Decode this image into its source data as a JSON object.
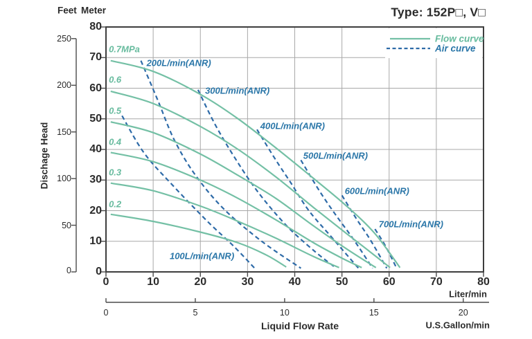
{
  "header": {
    "feet_label": "Feet",
    "meter_label": "Meter",
    "title": "Type: 152P□, V□"
  },
  "legend": {
    "flow_label": "Flow curve",
    "air_label": "Air curve"
  },
  "y_axis": {
    "label": "Dischage Head",
    "meter_ticks": [
      0,
      10,
      20,
      30,
      40,
      50,
      60,
      70,
      80
    ],
    "feet_ticks": [
      0,
      50,
      100,
      150,
      200,
      250
    ]
  },
  "x_axis": {
    "label": "Liquid Flow Rate",
    "liter_ticks": [
      0,
      10,
      20,
      30,
      40,
      50,
      60,
      70,
      80
    ],
    "liter_unit": "Liter/min",
    "gallon_ticks": [
      0,
      5,
      10,
      15,
      20
    ],
    "gallon_unit": "U.S.Gallon/min"
  },
  "colors": {
    "flow_curve": "#74c0a5",
    "flow_text": "#67bb9e",
    "air_curve": "#2e6ba8",
    "air_text": "#2a76a8",
    "grid": "#a8a8a8",
    "frame": "#3d3d3d",
    "axis": "#4a4a4a",
    "text": "#2b2b2b"
  },
  "chart_data": {
    "type": "line",
    "title": "Type: 152P□, V□",
    "xlabel": "Liquid Flow Rate",
    "ylabel": "Dischage Head",
    "x_unit_primary": "Liter/min",
    "x_unit_secondary": "U.S.Gallon/min",
    "y_unit_primary": "Meter",
    "y_unit_secondary": "Feet",
    "xlim_liter": [
      0,
      80
    ],
    "ylim_meter": [
      0,
      80
    ],
    "ylim_feet": [
      0,
      250
    ],
    "xlim_gallon": [
      0,
      20
    ],
    "grid": true,
    "legend_position": "top-right-inside",
    "flow_curves": [
      {
        "label": "0.7MPa",
        "label_anchor": [
          0.6,
          72.8
        ],
        "points": [
          [
            1,
            69
          ],
          [
            10,
            65.5
          ],
          [
            20,
            58
          ],
          [
            28,
            50
          ],
          [
            36,
            40.5
          ],
          [
            44,
            30.5
          ],
          [
            51,
            21.5
          ],
          [
            57,
            12.5
          ],
          [
            62.3,
            1.4
          ]
        ]
      },
      {
        "label": "0.6",
        "label_anchor": [
          0.6,
          62.8
        ],
        "points": [
          [
            1,
            59
          ],
          [
            10,
            55
          ],
          [
            20,
            47.5
          ],
          [
            28,
            40
          ],
          [
            36,
            31
          ],
          [
            44,
            21
          ],
          [
            51,
            12.5
          ],
          [
            56,
            6.5
          ],
          [
            60.2,
            1.4
          ]
        ]
      },
      {
        "label": "0.5",
        "label_anchor": [
          0.6,
          52.6
        ],
        "points": [
          [
            1,
            49
          ],
          [
            10,
            45.5
          ],
          [
            20,
            38.5
          ],
          [
            28,
            31.5
          ],
          [
            36,
            24
          ],
          [
            44,
            15
          ],
          [
            51,
            7.5
          ],
          [
            57.2,
            1.4
          ]
        ]
      },
      {
        "label": "0.4",
        "label_anchor": [
          0.6,
          42.5
        ],
        "points": [
          [
            1,
            39
          ],
          [
            10,
            36
          ],
          [
            20,
            30
          ],
          [
            28,
            24
          ],
          [
            36,
            17
          ],
          [
            44,
            9.5
          ],
          [
            50,
            4.5
          ],
          [
            54.2,
            1.4
          ]
        ]
      },
      {
        "label": "0.3",
        "label_anchor": [
          0.6,
          32.5
        ],
        "points": [
          [
            1,
            29
          ],
          [
            10,
            26.5
          ],
          [
            20,
            21.5
          ],
          [
            28,
            16.5
          ],
          [
            36,
            11
          ],
          [
            44,
            5
          ],
          [
            49.4,
            1.4
          ]
        ]
      },
      {
        "label": "0.2",
        "label_anchor": [
          0.6,
          22.1
        ],
        "points": [
          [
            1,
            18.8
          ],
          [
            10,
            16.5
          ],
          [
            20,
            13
          ],
          [
            28,
            9.5
          ],
          [
            34,
            5.5
          ],
          [
            38.2,
            1.6
          ]
        ]
      }
    ],
    "air_curves": [
      {
        "label": "100L/min(ANR)",
        "label_anchor": [
          13.5,
          5.2
        ],
        "points": [
          [
            3.4,
            51
          ],
          [
            8,
            39
          ],
          [
            14,
            28.5
          ],
          [
            21.5,
            16.5
          ],
          [
            27,
            8.5
          ],
          [
            31.5,
            1.2
          ]
        ]
      },
      {
        "label": "200L/min(ANR)",
        "label_anchor": [
          8.6,
          68.3
        ],
        "points": [
          [
            7.4,
            69
          ],
          [
            11,
            56
          ],
          [
            14.5,
            43
          ],
          [
            19,
            31.5
          ],
          [
            25,
            20.5
          ],
          [
            33,
            10
          ],
          [
            41.3,
            1.2
          ]
        ]
      },
      {
        "label": "300L/min(ANR)",
        "label_anchor": [
          21.0,
          59.2
        ],
        "points": [
          [
            19.5,
            59.5
          ],
          [
            23,
            48.5
          ],
          [
            27,
            38
          ],
          [
            32,
            26.5
          ],
          [
            38,
            15.5
          ],
          [
            44,
            7
          ],
          [
            48.8,
            1.2
          ]
        ]
      },
      {
        "label": "400L/min(ANR)",
        "label_anchor": [
          32.7,
          47.7
        ],
        "points": [
          [
            32,
            46.5
          ],
          [
            36,
            36.5
          ],
          [
            39,
            29.5
          ],
          [
            43,
            20
          ],
          [
            48,
            11
          ],
          [
            53.5,
            1.2
          ]
        ]
      },
      {
        "label": "500L/min(ANR)",
        "label_anchor": [
          41.8,
          38.0
        ],
        "points": [
          [
            41.3,
            36.5
          ],
          [
            45,
            27
          ],
          [
            48.5,
            19
          ],
          [
            52.5,
            10.5
          ],
          [
            56.5,
            1.2
          ]
        ]
      },
      {
        "label": "600L/min(ANR)",
        "label_anchor": [
          50.6,
          26.4
        ],
        "points": [
          [
            50,
            25
          ],
          [
            53,
            17.5
          ],
          [
            56,
            10.5
          ],
          [
            59.5,
            1.2
          ]
        ]
      },
      {
        "label": "700L/min(ANR)",
        "label_anchor": [
          57.8,
          15.6
        ],
        "points": [
          [
            57,
            14
          ],
          [
            59.2,
            8.5
          ],
          [
            61.6,
            1.2
          ]
        ]
      }
    ]
  }
}
